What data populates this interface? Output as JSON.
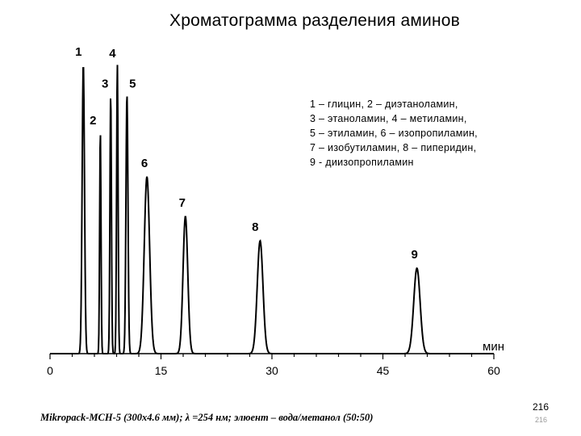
{
  "chart_data": {
    "type": "line",
    "title": "Хроматограмма разделения аминов",
    "xlabel": "мин",
    "ylabel": "",
    "xlim": [
      0,
      60
    ],
    "x_ticks": [
      0,
      15,
      30,
      45,
      60
    ],
    "x_tick_labels": [
      "0",
      "15",
      "30",
      "45",
      "60"
    ],
    "ylim": [
      0,
      100
    ],
    "grid": false,
    "legend": "top-right",
    "peaks": [
      {
        "label": "1",
        "x": 4.5,
        "height": 95,
        "width": 0.35
      },
      {
        "label": "2",
        "x": 6.8,
        "height": 73,
        "width": 0.2
      },
      {
        "label": "3",
        "x": 8.2,
        "height": 85,
        "width": 0.22
      },
      {
        "label": "4",
        "x": 9.1,
        "height": 95,
        "width": 0.22
      },
      {
        "label": "5",
        "x": 10.4,
        "height": 85,
        "width": 0.3
      },
      {
        "label": "6",
        "x": 13.1,
        "height": 58,
        "width": 0.8
      },
      {
        "label": "7",
        "x": 18.3,
        "height": 45,
        "width": 0.7
      },
      {
        "label": "8",
        "x": 28.4,
        "height": 37,
        "width": 0.85
      },
      {
        "label": "9",
        "x": 49.6,
        "height": 28,
        "width": 0.95
      }
    ],
    "annotations": [
      "1 – глицин, 2 – диэтаноламин,",
      "3 – этаноламин, 4 – метиламин,",
      "5 – этиламин, 6 – изопропиламин,",
      "7 – изобутиламин, 8 – пиперидин,",
      "9 - диизопропиламин"
    ]
  },
  "footnote": "Mikropack-MCH-5 (300x4.6 мм); λ =254 нм; элюент – вода/метанол (50:50)",
  "slide_number": "216"
}
